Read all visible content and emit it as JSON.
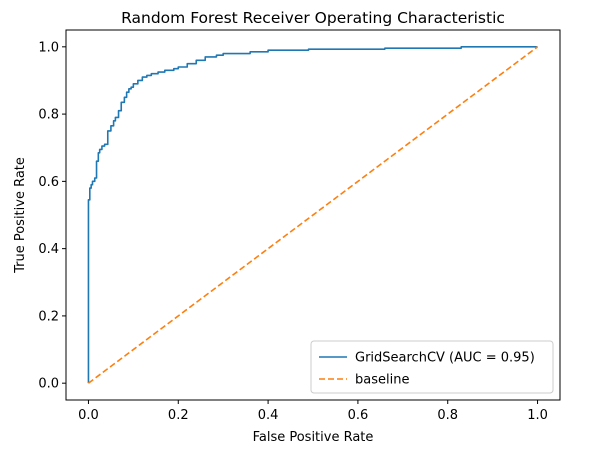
{
  "chart_data": {
    "type": "line",
    "title": "Random Forest Receiver Operating Characteristic",
    "xlabel": "False Positive Rate",
    "ylabel": "True Positive Rate",
    "xlim": [
      -0.05,
      1.05
    ],
    "ylim": [
      -0.05,
      1.05
    ],
    "x_ticks": [
      0.0,
      0.2,
      0.4,
      0.6,
      0.8,
      1.0
    ],
    "y_ticks": [
      0.0,
      0.2,
      0.4,
      0.6,
      0.8,
      1.0
    ],
    "x_tick_labels": [
      "0.0",
      "0.2",
      "0.4",
      "0.6",
      "0.8",
      "1.0"
    ],
    "y_tick_labels": [
      "0.0",
      "0.2",
      "0.4",
      "0.6",
      "0.8",
      "1.0"
    ],
    "grid": false,
    "legend_position": "lower-right",
    "series": [
      {
        "name": "GridSearchCV (AUC = 0.95)",
        "color": "#1f77b4",
        "style": "solid",
        "x": [
          0.0,
          0.0,
          0.003,
          0.003,
          0.006,
          0.006,
          0.009,
          0.009,
          0.014,
          0.014,
          0.018,
          0.018,
          0.022,
          0.022,
          0.025,
          0.025,
          0.03,
          0.03,
          0.036,
          0.036,
          0.043,
          0.043,
          0.05,
          0.05,
          0.056,
          0.056,
          0.06,
          0.06,
          0.067,
          0.067,
          0.073,
          0.073,
          0.08,
          0.08,
          0.085,
          0.085,
          0.09,
          0.09,
          0.095,
          0.095,
          0.1,
          0.1,
          0.11,
          0.11,
          0.12,
          0.12,
          0.13,
          0.13,
          0.14,
          0.14,
          0.155,
          0.155,
          0.17,
          0.17,
          0.19,
          0.19,
          0.2,
          0.2,
          0.22,
          0.22,
          0.24,
          0.24,
          0.26,
          0.26,
          0.285,
          0.285,
          0.3,
          0.3,
          0.36,
          0.36,
          0.4,
          0.4,
          0.49,
          0.49,
          0.66,
          0.66,
          0.83,
          0.83,
          1.0
        ],
        "y": [
          0.0,
          0.545,
          0.545,
          0.58,
          0.58,
          0.59,
          0.59,
          0.6,
          0.6,
          0.61,
          0.61,
          0.66,
          0.66,
          0.685,
          0.685,
          0.695,
          0.695,
          0.705,
          0.705,
          0.71,
          0.71,
          0.75,
          0.75,
          0.765,
          0.765,
          0.78,
          0.78,
          0.79,
          0.79,
          0.81,
          0.81,
          0.835,
          0.835,
          0.85,
          0.85,
          0.865,
          0.865,
          0.875,
          0.875,
          0.88,
          0.88,
          0.89,
          0.89,
          0.9,
          0.9,
          0.91,
          0.91,
          0.915,
          0.915,
          0.92,
          0.92,
          0.925,
          0.925,
          0.93,
          0.93,
          0.935,
          0.935,
          0.94,
          0.94,
          0.95,
          0.95,
          0.96,
          0.96,
          0.97,
          0.97,
          0.975,
          0.975,
          0.98,
          0.98,
          0.985,
          0.985,
          0.99,
          0.99,
          0.993,
          0.993,
          0.996,
          0.996,
          1.0,
          1.0
        ]
      },
      {
        "name": "baseline",
        "color": "#ff7f0e",
        "style": "dashed",
        "x": [
          0.0,
          1.0
        ],
        "y": [
          0.0,
          1.0
        ]
      }
    ]
  }
}
